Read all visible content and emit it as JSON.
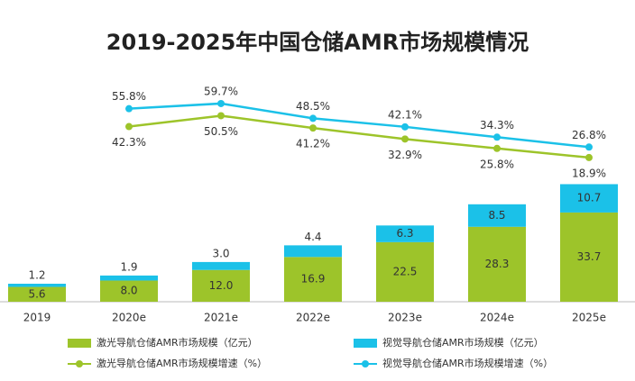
{
  "chart_data": {
    "type": "bar-line",
    "title": "2019-2025年中国仓储AMR市场规模情况",
    "categories": [
      "2019",
      "2020e",
      "2021e",
      "2022e",
      "2023e",
      "2024e",
      "2025e"
    ],
    "ylim": [
      0,
      100
    ],
    "y2lim": [
      -90,
      110
    ],
    "series": [
      {
        "name": "激光导航仓储AMR市场规模（亿元）",
        "type": "bar",
        "color": "#9dc42a",
        "values": [
          5.6,
          8,
          12,
          16.9,
          22.5,
          28.3,
          33.7
        ],
        "value_labels": [
          "5.6",
          "8.0",
          "12.0",
          "16.9",
          "22.5",
          "28.3",
          "33.7"
        ]
      },
      {
        "name": "视觉导航仓储AMR市场规模（亿元）",
        "type": "bar",
        "color": "#1bc1e8",
        "values": [
          1.2,
          1.9,
          3,
          4.4,
          6.3,
          8.5,
          10.7
        ],
        "value_labels": [
          "1.2",
          "1.9",
          "3.0",
          "4.4",
          "6.3",
          "8.5",
          "10.7"
        ]
      },
      {
        "name": "激光导航仓储AMR市场规模增速（%）",
        "type": "line",
        "axis": "y2",
        "color": "#9dc42a",
        "values": [
          null,
          42.3,
          50.5,
          41.2,
          32.9,
          25.8,
          18.9
        ],
        "value_labels": [
          null,
          "42.3%",
          "50.5%",
          "41.2%",
          "32.9%",
          "25.8%",
          "18.9%"
        ]
      },
      {
        "name": "视觉导航仓储AMR市场规模增速（%）",
        "type": "line",
        "axis": "y2",
        "color": "#1bc1e8",
        "values": [
          null,
          55.8,
          59.7,
          48.5,
          42.1,
          34.3,
          26.8
        ],
        "value_labels": [
          null,
          "55.8%",
          "59.7%",
          "48.5%",
          "42.1%",
          "34.3%",
          "26.8%"
        ]
      }
    ]
  }
}
